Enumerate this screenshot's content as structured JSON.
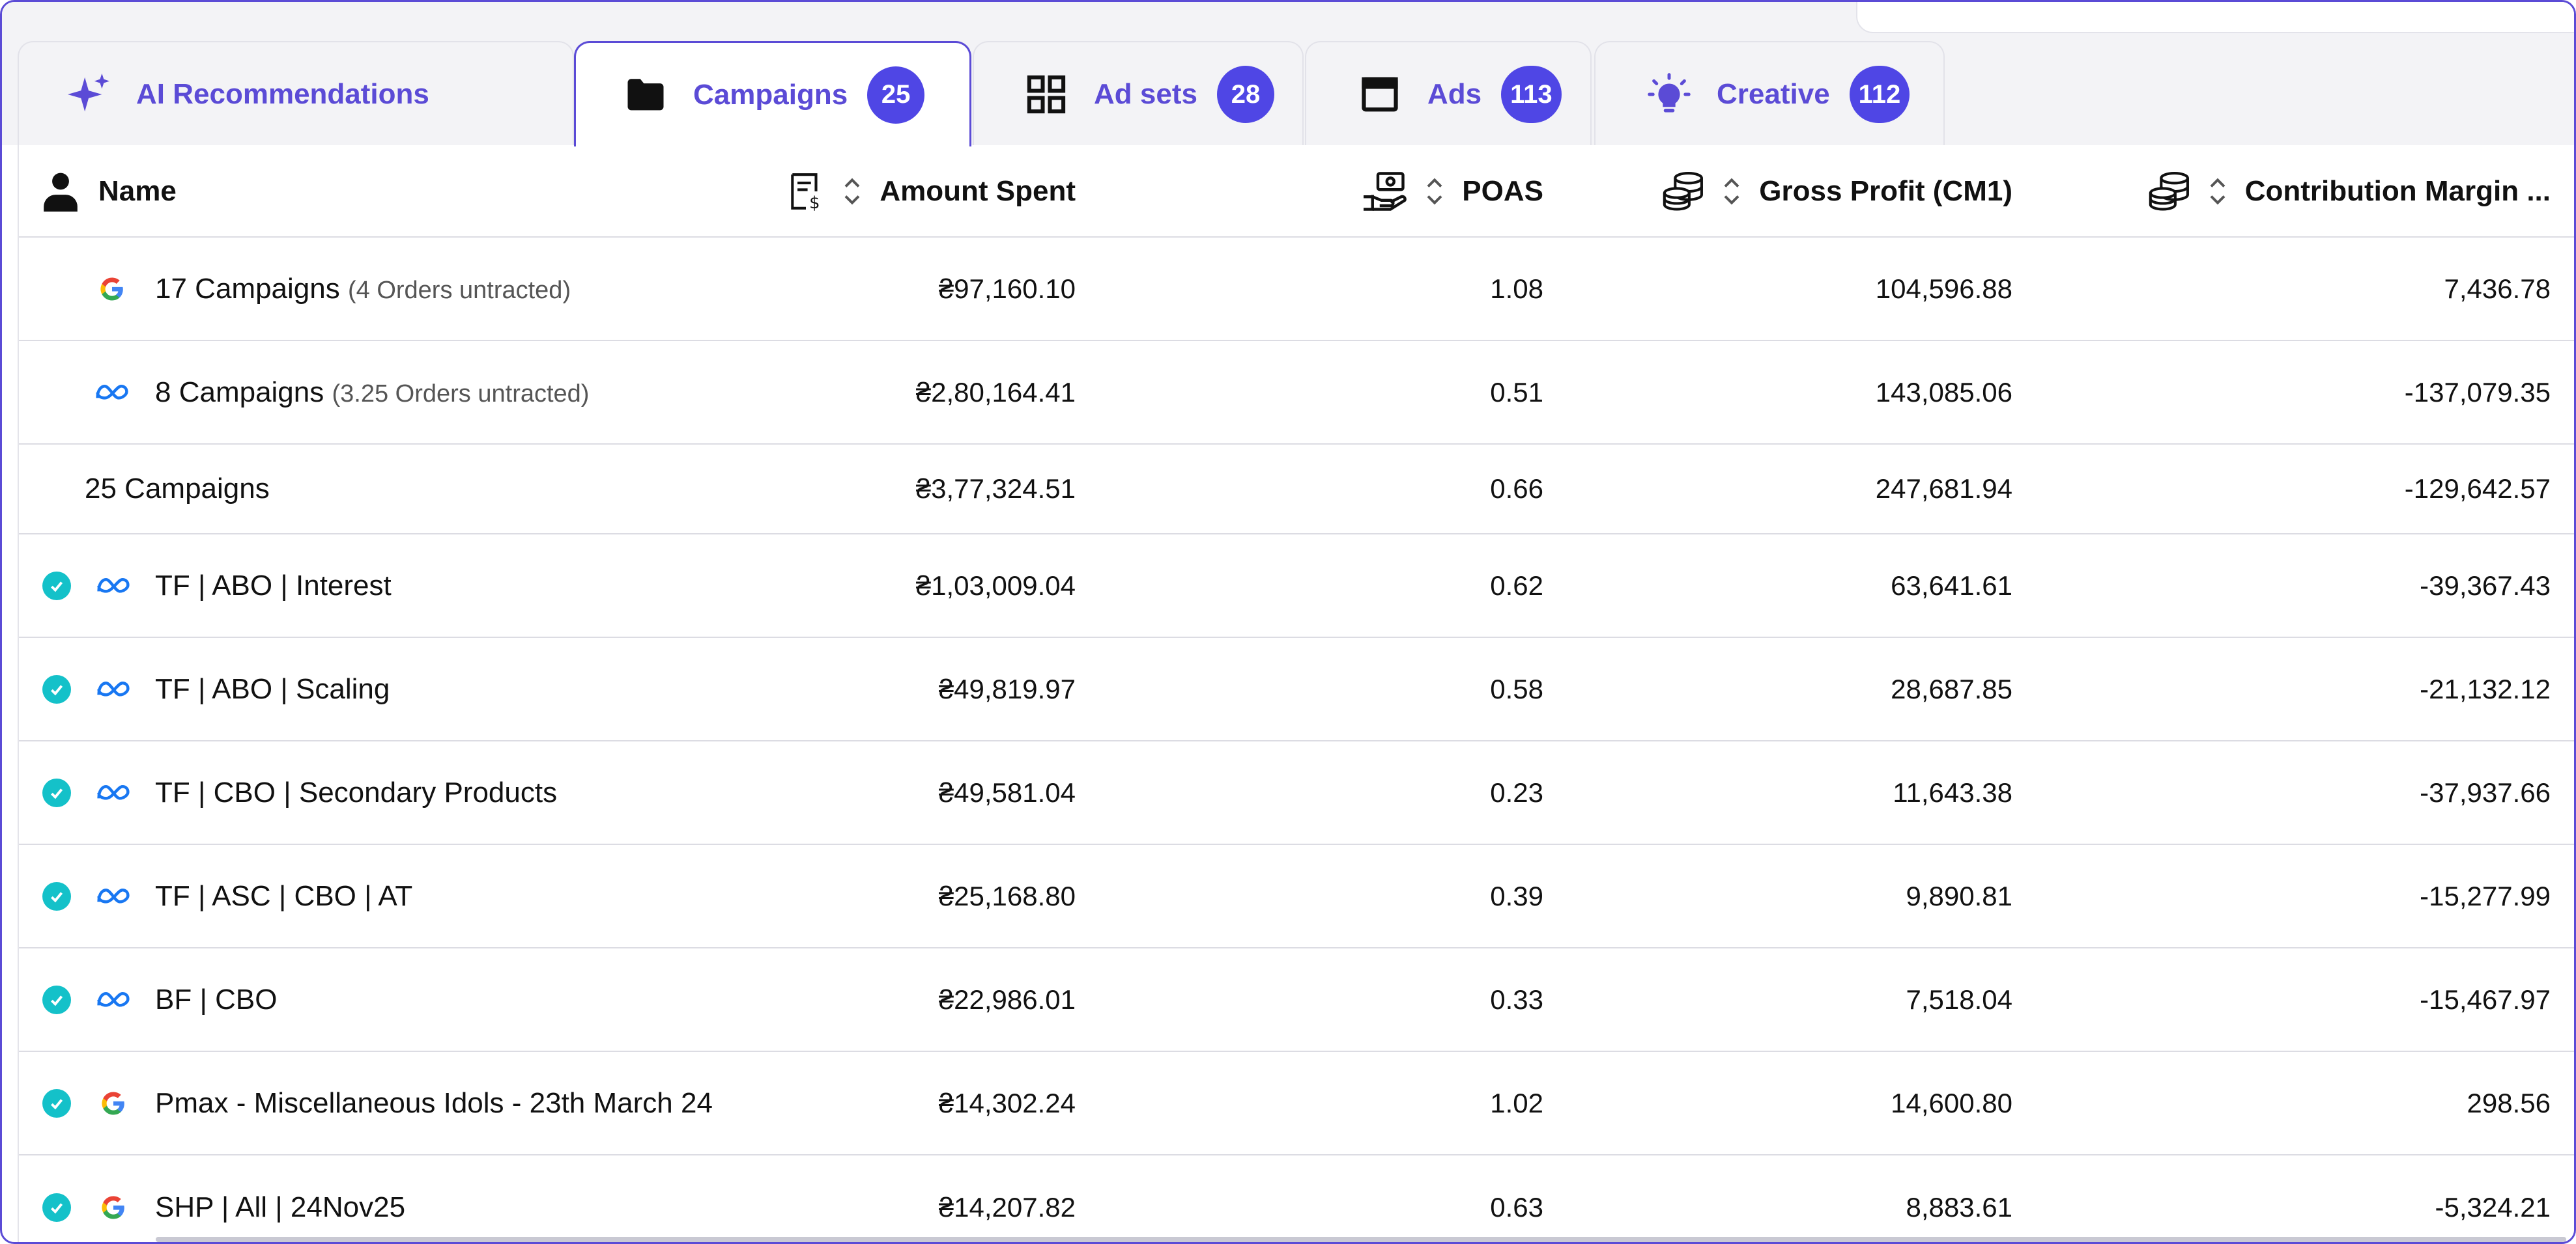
{
  "tabs": [
    {
      "label": "AI Recommendations",
      "badge": null,
      "icon": "sparkle-icon",
      "active": false
    },
    {
      "label": "Campaigns",
      "badge": "25",
      "icon": "folder-icon",
      "active": true
    },
    {
      "label": "Ad sets",
      "badge": "28",
      "icon": "grid-icon",
      "active": false
    },
    {
      "label": "Ads",
      "badge": "113",
      "icon": "window-icon",
      "active": false
    },
    {
      "label": "Creative",
      "badge": "112",
      "icon": "lightbulb-icon",
      "active": false
    }
  ],
  "columns": {
    "name": "Name",
    "amount": "Amount Spent",
    "poas": "POAS",
    "gross_profit": "Gross Profit (CM1)",
    "contribution_margin": "Contribution Margin ..."
  },
  "summary_rows": [
    {
      "platform": "google",
      "name": "17 Campaigns",
      "note": "(4 Orders untracted)",
      "amount": "₴97,160.10",
      "poas": "1.08",
      "gross_profit": "104,596.88",
      "contribution_margin": "7,436.78"
    },
    {
      "platform": "meta",
      "name": "8 Campaigns",
      "note": "(3.25 Orders untracted)",
      "amount": "₴2,80,164.41",
      "poas": "0.51",
      "gross_profit": "143,085.06",
      "contribution_margin": "-137,079.35"
    },
    {
      "platform": "",
      "name": "25 Campaigns",
      "note": "",
      "amount": "₴3,77,324.51",
      "poas": "0.66",
      "gross_profit": "247,681.94",
      "contribution_margin": "-129,642.57"
    }
  ],
  "rows": [
    {
      "platform": "meta",
      "name": "TF | ABO | Interest",
      "amount": "₴1,03,009.04",
      "poas": "0.62",
      "gross_profit": "63,641.61",
      "contribution_margin": "-39,367.43"
    },
    {
      "platform": "meta",
      "name": "TF | ABO | Scaling",
      "amount": "₴49,819.97",
      "poas": "0.58",
      "gross_profit": "28,687.85",
      "contribution_margin": "-21,132.12"
    },
    {
      "platform": "meta",
      "name": "TF | CBO | Secondary Products",
      "amount": "₴49,581.04",
      "poas": "0.23",
      "gross_profit": "11,643.38",
      "contribution_margin": "-37,937.66"
    },
    {
      "platform": "meta",
      "name": "TF | ASC | CBO | AT",
      "amount": "₴25,168.80",
      "poas": "0.39",
      "gross_profit": "9,890.81",
      "contribution_margin": "-15,277.99"
    },
    {
      "platform": "meta",
      "name": "BF | CBO",
      "amount": "₴22,986.01",
      "poas": "0.33",
      "gross_profit": "7,518.04",
      "contribution_margin": "-15,467.97"
    },
    {
      "platform": "google",
      "name": "Pmax - Miscellaneous Idols - 23th March 24",
      "amount": "₴14,302.24",
      "poas": "1.02",
      "gross_profit": "14,600.80",
      "contribution_margin": "298.56"
    },
    {
      "platform": "google",
      "name": "SHP | All | 24Nov25",
      "amount": "₴14,207.82",
      "poas": "0.63",
      "gross_profit": "8,883.61",
      "contribution_margin": "-5,324.21"
    }
  ],
  "colors": {
    "accent": "#5b4bd6",
    "badge": "#4f46e5",
    "status_check": "#14c1c9",
    "meta_blue": "#1877f2"
  }
}
